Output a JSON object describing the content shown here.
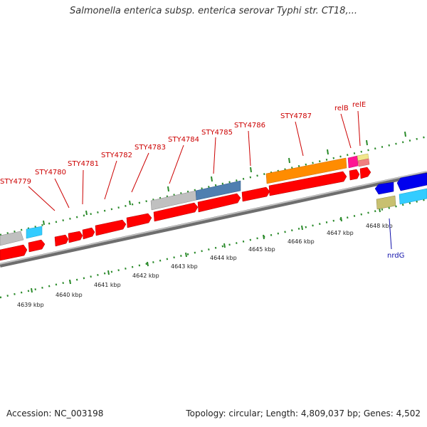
{
  "title": "Salmonella enterica subsp. enterica serovar Typhi str. CT18,...",
  "footer": {
    "accession": "Accession: NC_003198",
    "summary": "Topology: circular; Length: 4,809,037 bp; Genes: 4,502"
  },
  "gene_labels": [
    "STY4779",
    "STY4780",
    "STY4781",
    "STY4782",
    "STY4783",
    "STY4784",
    "STY4785",
    "STY4786",
    "STY4787",
    "relB",
    "relE",
    "nrdG"
  ],
  "kbp_labels": [
    "4639 kbp",
    "4640 kbp",
    "4641 kbp",
    "4642 kbp",
    "4643 kbp",
    "4644 kbp",
    "4645 kbp",
    "4646 kbp",
    "4647 kbp",
    "4648 kbp"
  ],
  "colors": {
    "cds_forward": "#ff0000",
    "label_red": "#cc0000",
    "label_blue": "#1010aa",
    "tick_green": "#2a8a2a",
    "backbone": "#8a8a8a",
    "gray_feature": "#c0c0c0",
    "steelblue_feature": "#4f7fb0",
    "orange_feature": "#ff8c00",
    "magenta_feature": "#ff1493",
    "pink_feature": "#f08080",
    "yellow_feature": "#f0e68c",
    "cyan_feature": "#33ccff",
    "blue_feature": "#0000ee",
    "khaki_feature": "#c8c070"
  }
}
